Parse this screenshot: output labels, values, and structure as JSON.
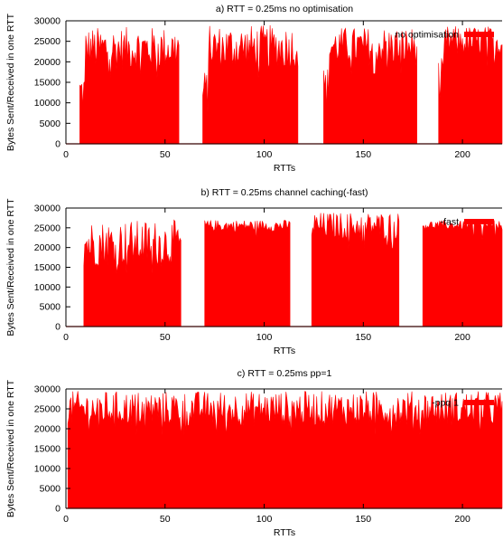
{
  "colors": {
    "series": "#ff0000",
    "axis": "#000000",
    "background": "#ffffff"
  },
  "chart_data": [
    {
      "type": "area",
      "title": "a) RTT = 0.25ms  no optimisation",
      "xlabel": "RTTs",
      "ylabel": "Bytes Sent/Received in one RTT",
      "xlim": [
        0,
        220
      ],
      "ylim": [
        0,
        30000
      ],
      "xticks": [
        0,
        50,
        100,
        150,
        200
      ],
      "yticks": [
        0,
        5000,
        10000,
        15000,
        20000,
        25000,
        30000
      ],
      "legend_position": "top-right",
      "series": [
        {
          "name": "no optimisation",
          "segments": [
            {
              "start": 7,
              "end": 57,
              "min": 18000,
              "max": 28500
            },
            {
              "start": 69,
              "end": 117,
              "min": 18000,
              "max": 29000
            },
            {
              "start": 130,
              "end": 177,
              "min": 19000,
              "max": 28500
            },
            {
              "start": 188,
              "end": 220,
              "min": 21000,
              "max": 28800
            }
          ]
        }
      ]
    },
    {
      "type": "area",
      "title": "b) RTT = 0.25ms channel caching(-fast)",
      "xlabel": "RTTs",
      "ylabel": "Bytes Sent/Received in one RTT",
      "xlim": [
        0,
        220
      ],
      "ylim": [
        0,
        30000
      ],
      "xticks": [
        0,
        50,
        100,
        150,
        200
      ],
      "yticks": [
        0,
        5000,
        10000,
        15000,
        20000,
        25000,
        30000
      ],
      "legend_position": "top-right",
      "series": [
        {
          "name": "-fast",
          "segments": [
            {
              "start": 9,
              "end": 58,
              "min": 15000,
              "max": 27000
            },
            {
              "start": 70,
              "end": 113,
              "min": 24000,
              "max": 27000
            },
            {
              "start": 124,
              "end": 168,
              "min": 22000,
              "max": 29000
            },
            {
              "start": 180,
              "end": 220,
              "min": 24500,
              "max": 26800
            }
          ]
        }
      ]
    },
    {
      "type": "area",
      "title": "c) RTT = 0.25ms  pp=1",
      "xlabel": "RTTs",
      "ylabel": "Bytes Sent/Received in one RTT",
      "xlim": [
        0,
        220
      ],
      "ylim": [
        0,
        30000
      ],
      "xticks": [
        0,
        50,
        100,
        150,
        200
      ],
      "yticks": [
        0,
        5000,
        10000,
        15000,
        20000,
        25000,
        30000
      ],
      "legend_position": "top-right",
      "series": [
        {
          "name": "-ppq 1",
          "segments": [
            {
              "start": 1,
              "end": 220,
              "min": 20500,
              "max": 29500
            }
          ]
        }
      ]
    }
  ]
}
